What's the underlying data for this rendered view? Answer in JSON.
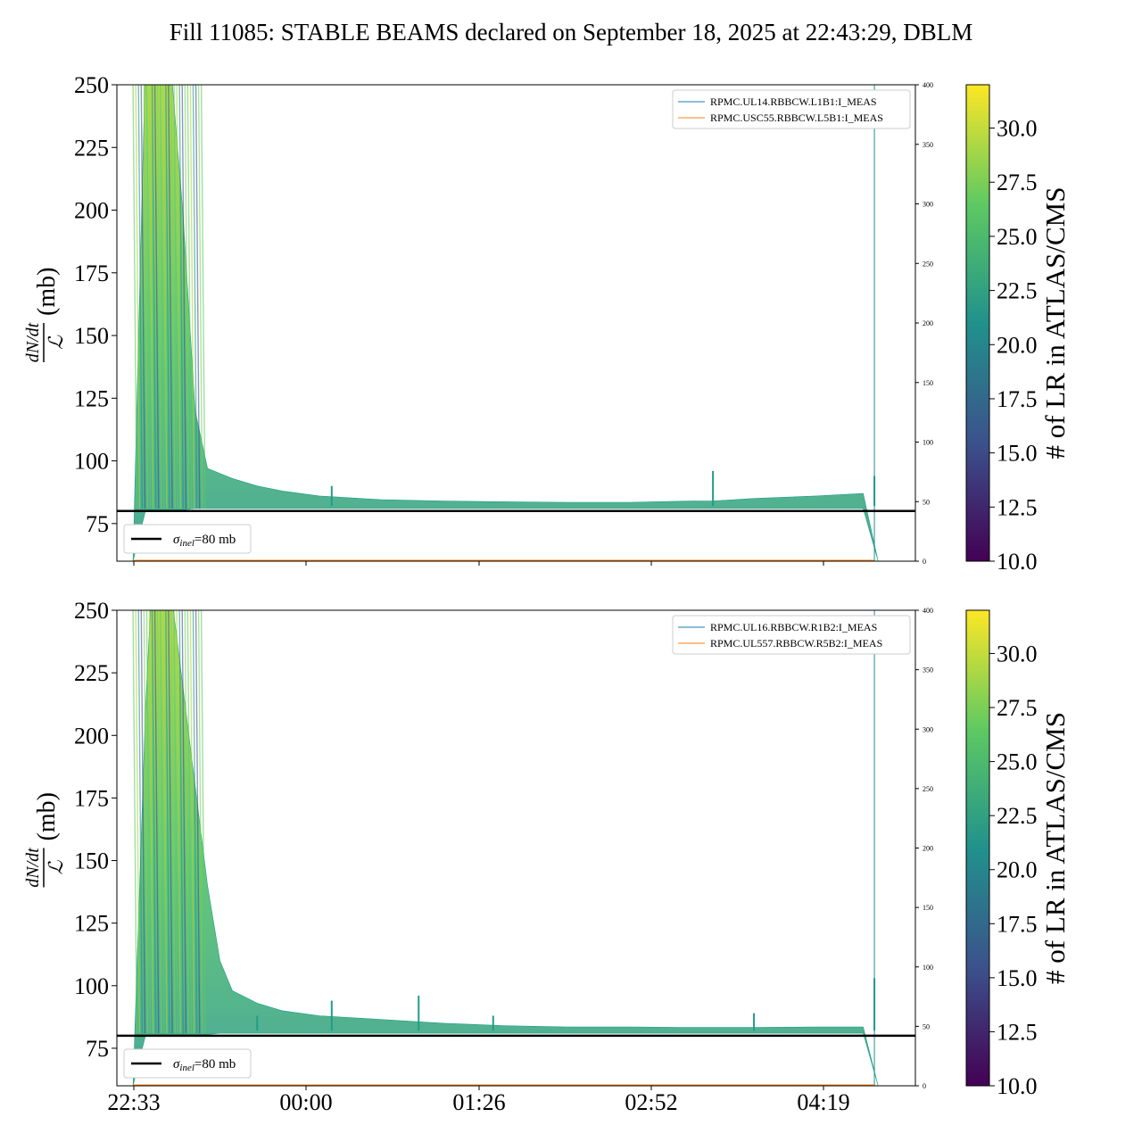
{
  "title": "Fill 11085: STABLE BEAMS declared on September 18, 2025 at 22:43:29, DBLM",
  "colors": {
    "reference_line": "#000000",
    "series_blue": "#1f77b4",
    "series_orange": "#ff7f0e",
    "viridis": [
      "#440154",
      "#3b528b",
      "#21918c",
      "#5ec962",
      "#fde725"
    ]
  },
  "chart_data": [
    {
      "type": "scatter",
      "panel": "top",
      "ylabel": "(mb)",
      "ylabel_fraction": {
        "numerator": "dN/dt",
        "denominator": "ℒ"
      },
      "ylim": [
        60,
        250
      ],
      "yticks": [
        75,
        100,
        125,
        150,
        175,
        200,
        225,
        250
      ],
      "y2lim": [
        0,
        400
      ],
      "y2ticks": [
        0,
        50,
        100,
        150,
        200,
        250,
        300,
        350,
        400
      ],
      "xticks": [
        "22:33",
        "00:00",
        "01:26",
        "02:52",
        "04:19"
      ],
      "xtick_labels_visible": false,
      "reference_line": {
        "y": 80,
        "label": "σinel=80 mb",
        "label_main": "σ",
        "label_sub": "inel",
        "label_rest": "=80 mb"
      },
      "legend": [
        "RPMC.UL14.RBBCW.L1B1:I_MEAS",
        "RPMC.USC55.RBBCW.L5B1:I_MEAS"
      ],
      "legend_position": "top-right",
      "colorbar": {
        "label": "# of LR in ATLAS/CMS",
        "range": [
          10,
          32
        ],
        "ticks": [
          "10.0",
          "12.5",
          "15.0",
          "17.5",
          "20.0",
          "22.5",
          "25.0",
          "27.5",
          "30.0"
        ]
      },
      "envelope": {
        "x": [
          0.0,
          0.1,
          0.2,
          0.25,
          0.3,
          0.4,
          0.5,
          0.6,
          0.8,
          1.0,
          1.2,
          1.5,
          2.0,
          2.5,
          3.0,
          3.5,
          4.0,
          4.5,
          4.67,
          5.0,
          5.5,
          5.88,
          6.0,
          6.3
        ],
        "upper": [
          0,
          260,
          260,
          260,
          260,
          200,
          120,
          97,
          93,
          90,
          88,
          86,
          84.5,
          84,
          83.7,
          83.5,
          83.5,
          84,
          84,
          85,
          86,
          87,
          0,
          0
        ],
        "lower": [
          0,
          80,
          80,
          80,
          80,
          80.5,
          81,
          81,
          81,
          81,
          81,
          81,
          81,
          81,
          81,
          81,
          81,
          81,
          81,
          81,
          81,
          81,
          0,
          0
        ]
      },
      "spikes": [
        {
          "x": 1.6,
          "y": 90
        },
        {
          "x": 4.67,
          "y": 96
        },
        {
          "x": 5.97,
          "y": 94
        }
      ]
    },
    {
      "type": "scatter",
      "panel": "bottom",
      "ylabel": "(mb)",
      "ylabel_fraction": {
        "numerator": "dN/dt",
        "denominator": "ℒ"
      },
      "ylim": [
        60,
        250
      ],
      "yticks": [
        75,
        100,
        125,
        150,
        175,
        200,
        225,
        250
      ],
      "y2lim": [
        0,
        400
      ],
      "y2ticks": [
        0,
        50,
        100,
        150,
        200,
        250,
        300,
        350,
        400
      ],
      "xticks": [
        "22:33",
        "00:00",
        "01:26",
        "02:52",
        "04:19"
      ],
      "xtick_labels_visible": true,
      "reference_line": {
        "y": 80,
        "label": "σinel=80 mb",
        "label_main": "σ",
        "label_sub": "inel",
        "label_rest": "=80 mb"
      },
      "legend": [
        "RPMC.UL16.RBBCW.R1B2:I_MEAS",
        "RPMC.UL557.RBBCW.R5B2:I_MEAS"
      ],
      "legend_position": "top-right",
      "colorbar": {
        "label": "# of LR in ATLAS/CMS",
        "range": [
          10,
          32
        ],
        "ticks": [
          "10.0",
          "12.5",
          "15.0",
          "17.5",
          "20.0",
          "22.5",
          "25.0",
          "27.5",
          "30.0"
        ]
      },
      "envelope": {
        "x": [
          0.0,
          0.1,
          0.15,
          0.3,
          0.45,
          0.6,
          0.7,
          0.8,
          1.0,
          1.2,
          1.5,
          2.0,
          2.5,
          3.0,
          3.5,
          4.0,
          4.5,
          5.0,
          5.5,
          5.88,
          6.0,
          6.3
        ],
        "upper": [
          0,
          210,
          260,
          260,
          200,
          140,
          110,
          98,
          93,
          90,
          88,
          86.5,
          85,
          84,
          83.5,
          83.5,
          83.3,
          83.3,
          83.5,
          83.5,
          0,
          0
        ],
        "lower": [
          0,
          80,
          80,
          80,
          80,
          80.5,
          81,
          81,
          81,
          81,
          81,
          81,
          81,
          81,
          81,
          81,
          81,
          81,
          81,
          81,
          0,
          0
        ]
      },
      "spikes": [
        {
          "x": 1.0,
          "y": 88
        },
        {
          "x": 1.6,
          "y": 94
        },
        {
          "x": 2.3,
          "y": 96
        },
        {
          "x": 2.9,
          "y": 88
        },
        {
          "x": 5.0,
          "y": 89
        },
        {
          "x": 5.97,
          "y": 103
        }
      ]
    }
  ]
}
